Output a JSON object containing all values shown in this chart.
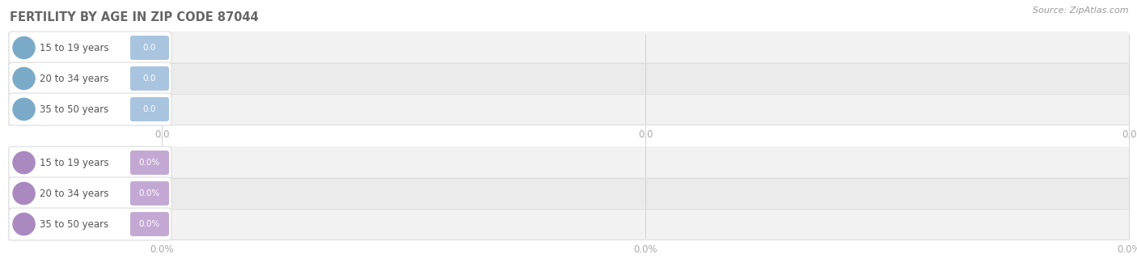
{
  "title": "FERTILITY BY AGE IN ZIP CODE 87044",
  "title_fontsize": 10.5,
  "title_color": "#666666",
  "source_text": "Source: ZipAtlas.com",
  "background_color": "#ffffff",
  "top_section": {
    "categories": [
      "15 to 19 years",
      "20 to 34 years",
      "35 to 50 years"
    ],
    "values": [
      0.0,
      0.0,
      0.0
    ],
    "bar_color": "#a8c4df",
    "circle_color": "#7aaac8",
    "value_labels": [
      "0.0",
      "0.0",
      "0.0"
    ],
    "axis_ticks": [
      "0.0",
      "0.0",
      "0.0"
    ]
  },
  "bottom_section": {
    "categories": [
      "15 to 19 years",
      "20 to 34 years",
      "35 to 50 years"
    ],
    "values": [
      0.0,
      0.0,
      0.0
    ],
    "bar_color": "#c4a8d4",
    "circle_color": "#aa88c0",
    "value_labels": [
      "0.0%",
      "0.0%",
      "0.0%"
    ],
    "axis_ticks": [
      "0.0%",
      "0.0%",
      "0.0%"
    ]
  },
  "tick_color": "#aaaaaa",
  "tick_fontsize": 8.5,
  "label_fontsize": 8.5,
  "value_fontsize": 7.5,
  "source_fontsize": 8,
  "row_bg_colors": [
    "#f2f2f2",
    "#ebebeb"
  ],
  "row_bg_light": "#f7f7f7",
  "separator_color": "#dddddd",
  "grid_color": "#cccccc"
}
